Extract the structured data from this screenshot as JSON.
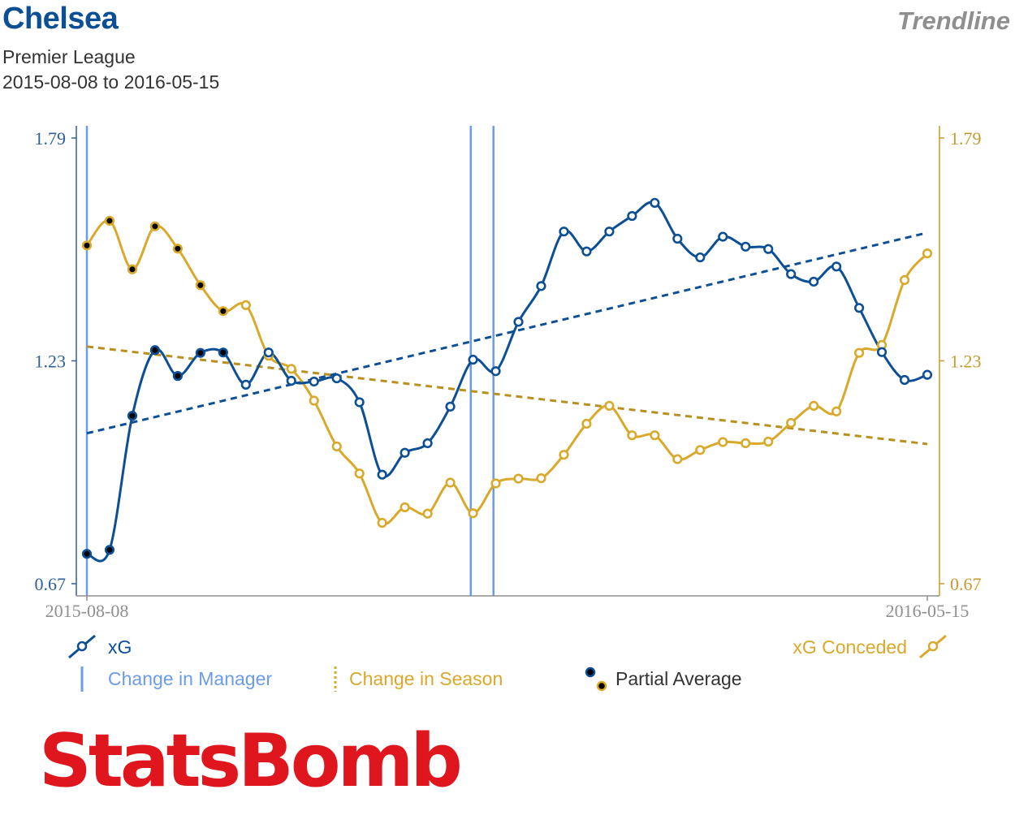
{
  "header": {
    "team": "Chelsea",
    "tag": "Trendline",
    "competition": "Premier League",
    "date_range": "2015-08-08 to 2016-05-15"
  },
  "legend": {
    "xg": "xG",
    "xg_conceded": "xG Conceded",
    "manager_change": "Change in Manager",
    "season_change": "Change in Season",
    "partial_average": "Partial Average"
  },
  "logo_text": "StatsBomb",
  "colors": {
    "xg": "#0d4f94",
    "xg_conceded": "#d9a92b",
    "trend_conceded": "#b8901e",
    "manager_line": "#6b9bec",
    "axis_left": "#2e5f9e",
    "axis_right": "#c99a2e",
    "axis_bottom": "#8f8f8f"
  },
  "chart_data": {
    "type": "line",
    "x_start_label": "2015-08-08",
    "x_end_label": "2016-05-15",
    "matches": 38,
    "ylim": [
      0.67,
      1.79
    ],
    "y_ticks": [
      0.67,
      1.23,
      1.79
    ],
    "y_tick_labels": [
      "0.67",
      "1.23",
      "1.79"
    ],
    "series": [
      {
        "name": "xG",
        "axis": "left",
        "values": [
          0.745,
          0.755,
          1.092,
          1.257,
          1.192,
          1.25,
          1.251,
          1.17,
          1.251,
          1.18,
          1.178,
          1.186,
          1.126,
          0.944,
          0.999,
          1.023,
          1.115,
          1.233,
          1.204,
          1.328,
          1.418,
          1.555,
          1.505,
          1.555,
          1.594,
          1.627,
          1.537,
          1.49,
          1.542,
          1.517,
          1.511,
          1.448,
          1.429,
          1.467,
          1.363,
          1.252,
          1.182,
          1.195
        ],
        "partial_count": 7,
        "trend": [
          1.048,
          1.552
        ]
      },
      {
        "name": "xG Conceded",
        "axis": "right",
        "values": [
          1.52,
          1.582,
          1.46,
          1.568,
          1.512,
          1.42,
          1.355,
          1.37,
          1.243,
          1.21,
          1.13,
          1.015,
          0.947,
          0.823,
          0.862,
          0.846,
          0.924,
          0.847,
          0.922,
          0.934,
          0.935,
          0.994,
          1.072,
          1.117,
          1.043,
          1.043,
          0.983,
          1.006,
          1.026,
          1.023,
          1.027,
          1.074,
          1.117,
          1.103,
          1.25,
          1.27,
          1.433,
          1.5
        ],
        "partial_count": 7,
        "trend": [
          1.266,
          1.021
        ]
      }
    ],
    "manager_changes": [
      1,
      17.9,
      18.9
    ],
    "x_labels": [
      "2015-08-08",
      "2016-05-15"
    ]
  }
}
